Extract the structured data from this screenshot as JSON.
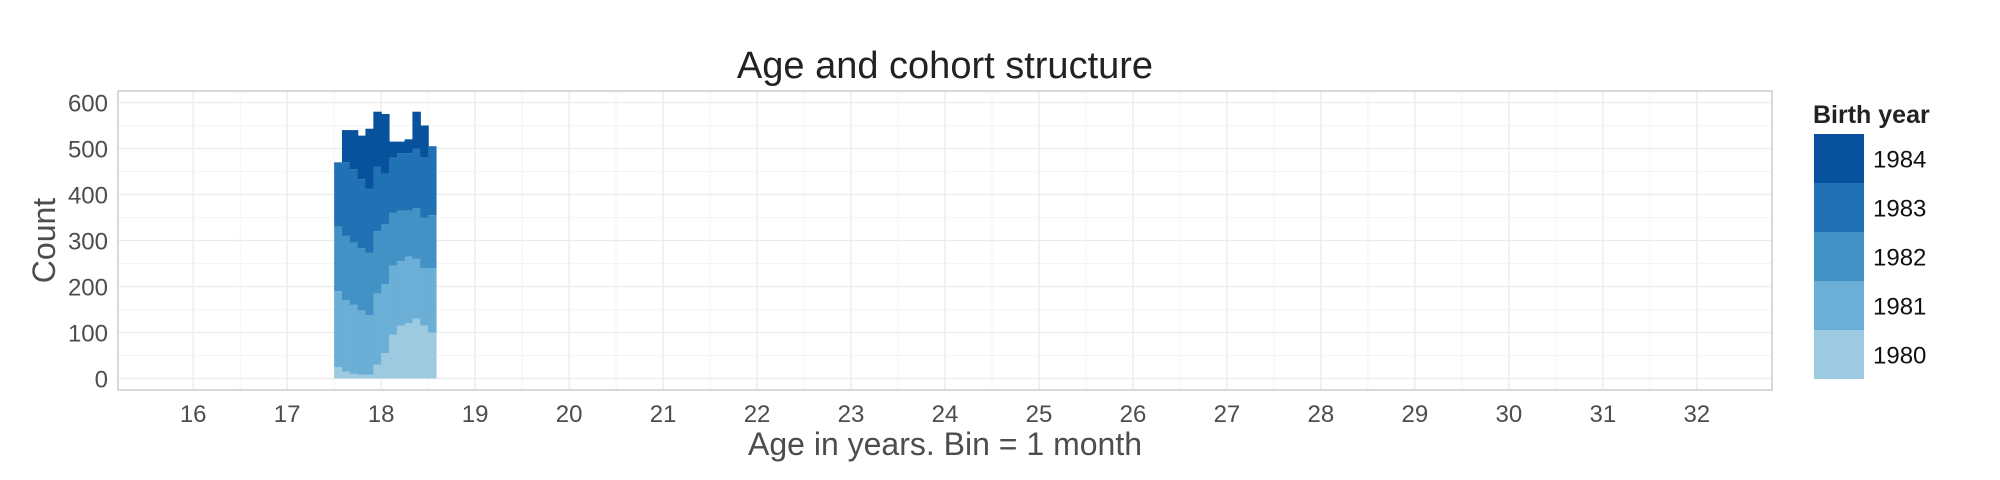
{
  "chart_data": {
    "type": "bar",
    "stacked": true,
    "title": "Age and cohort structure",
    "xlabel": "Age in years. Bin = 1 month",
    "ylabel": "Count",
    "xlim": [
      15.2,
      32.8
    ],
    "ylim": [
      -25,
      625
    ],
    "x_ticks": [
      16,
      17,
      18,
      19,
      20,
      21,
      22,
      23,
      24,
      25,
      26,
      27,
      28,
      29,
      30,
      31,
      32
    ],
    "y_ticks": [
      0,
      100,
      200,
      300,
      400,
      500,
      600
    ],
    "grid": true,
    "legend_position": "right",
    "bin_width_years": 0.08333,
    "x": [
      17.5,
      17.583,
      17.667,
      17.75,
      17.833,
      17.917,
      18.0,
      18.083,
      18.167,
      18.25,
      18.333,
      18.417,
      18.5
    ],
    "series": [
      {
        "name": "1980",
        "color": "#9ecae1",
        "values": [
          25,
          15,
          10,
          8,
          8,
          30,
          55,
          95,
          115,
          120,
          130,
          115,
          100
        ]
      },
      {
        "name": "1981",
        "color": "#6baed6",
        "values": [
          165,
          155,
          150,
          140,
          130,
          155,
          150,
          150,
          140,
          145,
          130,
          125,
          140
        ]
      },
      {
        "name": "1982",
        "color": "#4292c6",
        "values": [
          140,
          140,
          135,
          135,
          135,
          135,
          130,
          115,
          110,
          100,
          110,
          110,
          115
        ]
      },
      {
        "name": "1983",
        "color": "#2171b5",
        "values": [
          140,
          160,
          160,
          150,
          140,
          140,
          110,
          120,
          125,
          125,
          130,
          130,
          150
        ]
      },
      {
        "name": "1984",
        "color": "#08519c",
        "values": [
          0,
          70,
          85,
          95,
          130,
          120,
          130,
          35,
          25,
          30,
          80,
          70,
          0
        ]
      }
    ],
    "legend": {
      "title": "Birth year",
      "items": [
        "1984",
        "1983",
        "1982",
        "1981",
        "1980"
      ]
    }
  }
}
